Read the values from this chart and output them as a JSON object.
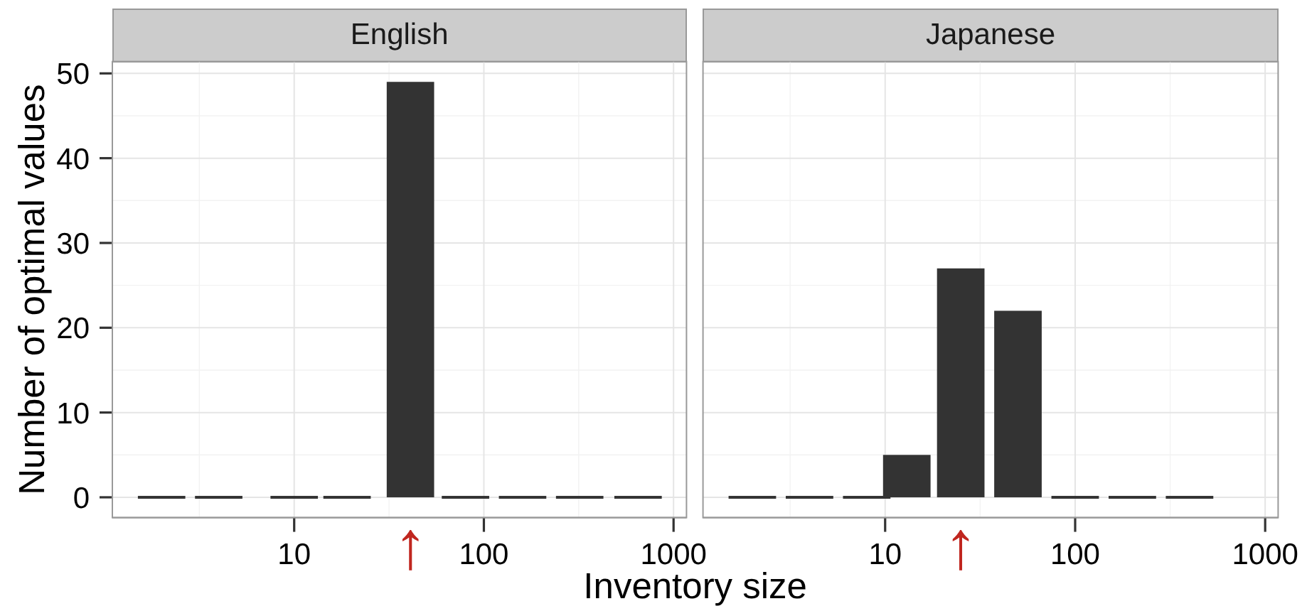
{
  "chart_data": [
    {
      "type": "bar",
      "title": "English",
      "xlabel": "Inventory size",
      "ylabel": "Number of optimal values",
      "x": [
        2,
        4,
        10,
        19,
        41,
        80,
        160,
        320,
        650
      ],
      "values": [
        0,
        0,
        0,
        0,
        49,
        0,
        0,
        0,
        0
      ],
      "color": "#333333",
      "log": "x",
      "xlim": [
        1.1,
        1170
      ],
      "xticks": [
        10,
        100,
        1000
      ],
      "ylim": [
        -2.4,
        51.4
      ],
      "yticks": [
        0,
        10,
        20,
        30,
        40,
        50
      ],
      "grid": true,
      "annotations": [
        {
          "text": "↑",
          "x": 41,
          "y": 0
        }
      ]
    },
    {
      "type": "bar",
      "title": "Japanese",
      "x": [
        2,
        4,
        8,
        13,
        25,
        50,
        100,
        200,
        400
      ],
      "values": [
        0,
        0,
        0,
        5,
        27,
        22,
        0,
        0,
        0
      ],
      "color": "#333333",
      "log": "x",
      "xlim": [
        1.1,
        1170
      ],
      "xticks": [
        10,
        100,
        1000
      ],
      "ylim": [
        -2.4,
        51.4
      ],
      "yticks": [
        0,
        10,
        20,
        30,
        40,
        50
      ],
      "grid": true,
      "tick_labels": "x",
      "annotations": [
        {
          "text": "↑",
          "x": 25,
          "y": 0
        }
      ]
    }
  ]
}
